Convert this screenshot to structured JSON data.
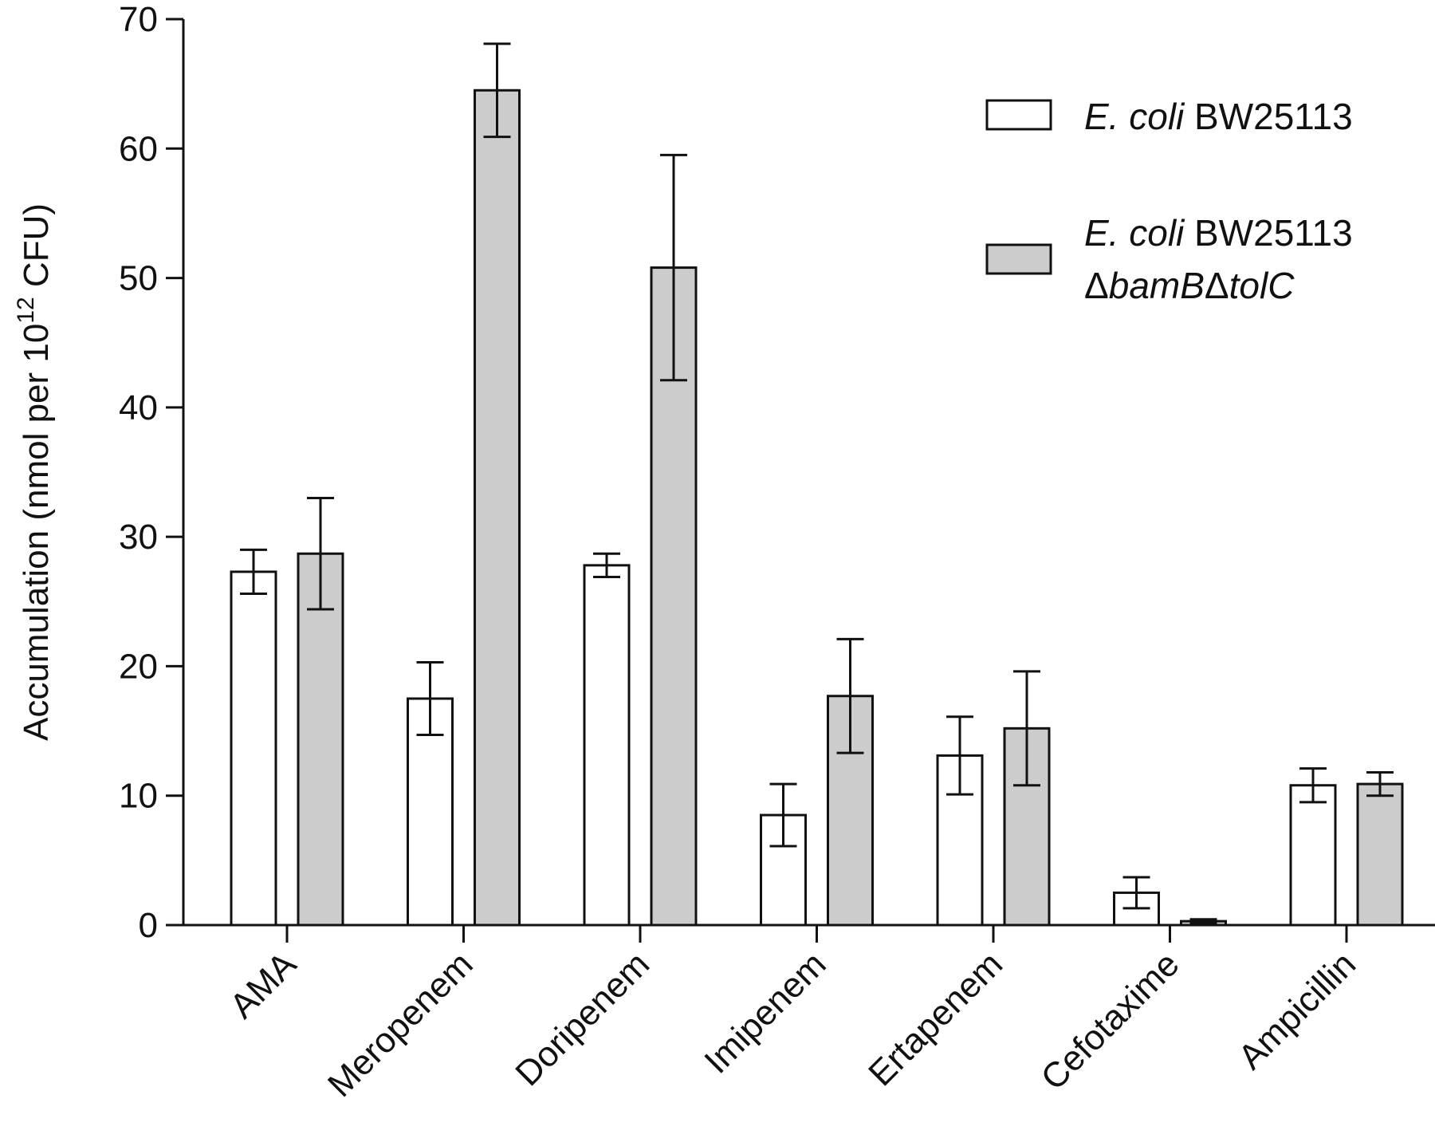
{
  "chart_data": {
    "type": "bar",
    "categories": [
      "AMA",
      "Meropenem",
      "Doripenem",
      "Imipenem",
      "Ertapenem",
      "Cefotaxime",
      "Ampicillin"
    ],
    "series": [
      {
        "name_italic": "E. coli",
        "name_rest": " BW25113",
        "color": "#ffffff",
        "values": [
          27.3,
          17.5,
          27.8,
          8.5,
          13.1,
          2.5,
          10.8
        ],
        "errors": [
          1.7,
          2.8,
          0.9,
          2.4,
          3.0,
          1.2,
          1.3
        ]
      },
      {
        "name_italic": "E. coli",
        "name_rest": " BW25113",
        "name_line2_parts": [
          "Δ",
          "bamB",
          "Δ",
          "tolC"
        ],
        "color": "#cccccc",
        "values": [
          28.7,
          64.5,
          50.8,
          17.7,
          15.2,
          0.3,
          10.9
        ],
        "errors": [
          4.3,
          3.6,
          8.7,
          4.4,
          4.4,
          0.15,
          0.9
        ]
      }
    ],
    "ylabel": {
      "main": "Accumulation (nmol per 10",
      "exp": "12",
      "tail": " CFU)"
    },
    "ylim": [
      0,
      70
    ],
    "yticks": [
      "0",
      "10",
      "20",
      "30",
      "40",
      "50",
      "60",
      "70"
    ],
    "grid": false,
    "legend": "top-right"
  }
}
